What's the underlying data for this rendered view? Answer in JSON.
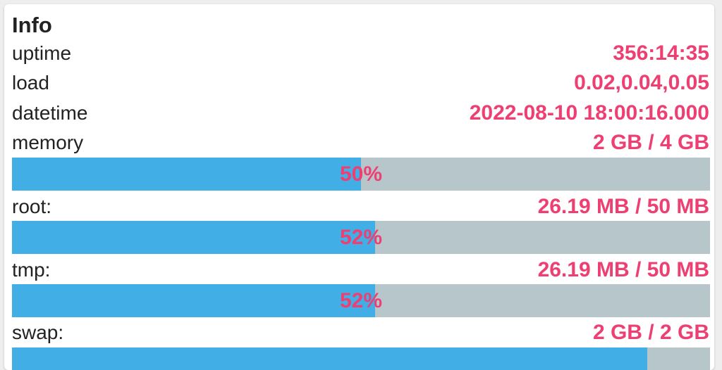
{
  "panel": {
    "title": "Info"
  },
  "rows": {
    "uptime": {
      "label": "uptime",
      "value": "356:14:35"
    },
    "load": {
      "label": "load",
      "value": "0.02,0.04,0.05"
    },
    "datetime": {
      "label": "datetime",
      "value": "2022-08-10 18:00:16.000"
    },
    "memory": {
      "label": "memory",
      "value": "2 GB / 4 GB",
      "percent_label": "50%",
      "percent": 50
    },
    "root": {
      "label": "root:",
      "value": "26.19 MB / 50 MB",
      "percent_label": "52%",
      "percent": 52
    },
    "tmp": {
      "label": "tmp:",
      "value": "26.19 MB / 50 MB",
      "percent_label": "52%",
      "percent": 52
    },
    "swap": {
      "label": "swap:",
      "value": "2 GB / 2 GB",
      "percent": 91
    }
  },
  "colors": {
    "accent": "#ee3f72",
    "bar_fill": "#41afe6",
    "bar_track": "#b7c6cb"
  }
}
